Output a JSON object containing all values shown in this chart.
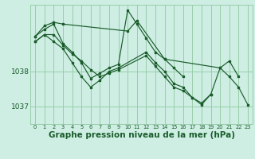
{
  "background_color": "#ceeee4",
  "grid_color": "#99ccaa",
  "line_color": "#1a5c2a",
  "marker_color": "#1a5c2a",
  "xlabel": "Graphe pression niveau de la mer (hPa)",
  "xlabel_fontsize": 7.5,
  "yticks": [
    1037,
    1038
  ],
  "ylim": [
    1036.5,
    1039.9
  ],
  "xlim": [
    -0.5,
    23.5
  ],
  "xticks": [
    0,
    1,
    2,
    3,
    4,
    5,
    6,
    7,
    8,
    9,
    10,
    11,
    12,
    13,
    14,
    15,
    16,
    17,
    18,
    19,
    20,
    21,
    22,
    23
  ],
  "series": [
    {
      "points": [
        [
          0,
          1039.0
        ],
        [
          1,
          1039.3
        ],
        [
          2,
          1039.4
        ],
        [
          3,
          1039.35
        ],
        [
          10,
          1039.15
        ],
        [
          11,
          1039.45
        ],
        [
          14,
          1038.35
        ],
        [
          20,
          1038.1
        ],
        [
          21,
          1038.3
        ],
        [
          22,
          1037.85
        ]
      ]
    },
    {
      "points": [
        [
          0,
          1039.0
        ],
        [
          1,
          1039.2
        ],
        [
          2,
          1039.35
        ],
        [
          3,
          1038.8
        ],
        [
          4,
          1038.55
        ],
        [
          5,
          1038.25
        ],
        [
          6,
          1037.8
        ],
        [
          7,
          1037.95
        ],
        [
          8,
          1038.1
        ],
        [
          9,
          1038.2
        ],
        [
          10,
          1039.75
        ],
        [
          11,
          1039.35
        ],
        [
          12,
          1038.95
        ],
        [
          13,
          1038.55
        ],
        [
          14,
          1038.35
        ],
        [
          15,
          1038.1
        ],
        [
          16,
          1037.85
        ]
      ]
    },
    {
      "points": [
        [
          0,
          1038.85
        ],
        [
          1,
          1039.05
        ],
        [
          2,
          1038.85
        ],
        [
          3,
          1038.65
        ],
        [
          4,
          1038.25
        ],
        [
          5,
          1037.85
        ],
        [
          6,
          1037.55
        ],
        [
          7,
          1037.75
        ],
        [
          8,
          1038.0
        ],
        [
          9,
          1038.1
        ],
        [
          12,
          1038.55
        ],
        [
          13,
          1038.25
        ],
        [
          14,
          1038.0
        ],
        [
          15,
          1037.65
        ],
        [
          16,
          1037.55
        ],
        [
          17,
          1037.25
        ],
        [
          18,
          1037.1
        ],
        [
          19,
          1037.35
        ]
      ]
    },
    {
      "points": [
        [
          0,
          1038.85
        ],
        [
          1,
          1039.05
        ],
        [
          2,
          1039.05
        ],
        [
          3,
          1038.75
        ],
        [
          4,
          1038.5
        ],
        [
          5,
          1038.3
        ],
        [
          6,
          1038.05
        ],
        [
          7,
          1037.85
        ],
        [
          8,
          1037.95
        ],
        [
          9,
          1038.05
        ],
        [
          12,
          1038.45
        ],
        [
          13,
          1038.15
        ],
        [
          14,
          1037.85
        ],
        [
          15,
          1037.55
        ],
        [
          16,
          1037.45
        ],
        [
          17,
          1037.25
        ],
        [
          18,
          1037.05
        ],
        [
          19,
          1037.35
        ],
        [
          20,
          1038.1
        ],
        [
          21,
          1037.85
        ],
        [
          22,
          1037.55
        ],
        [
          23,
          1037.05
        ]
      ]
    }
  ]
}
